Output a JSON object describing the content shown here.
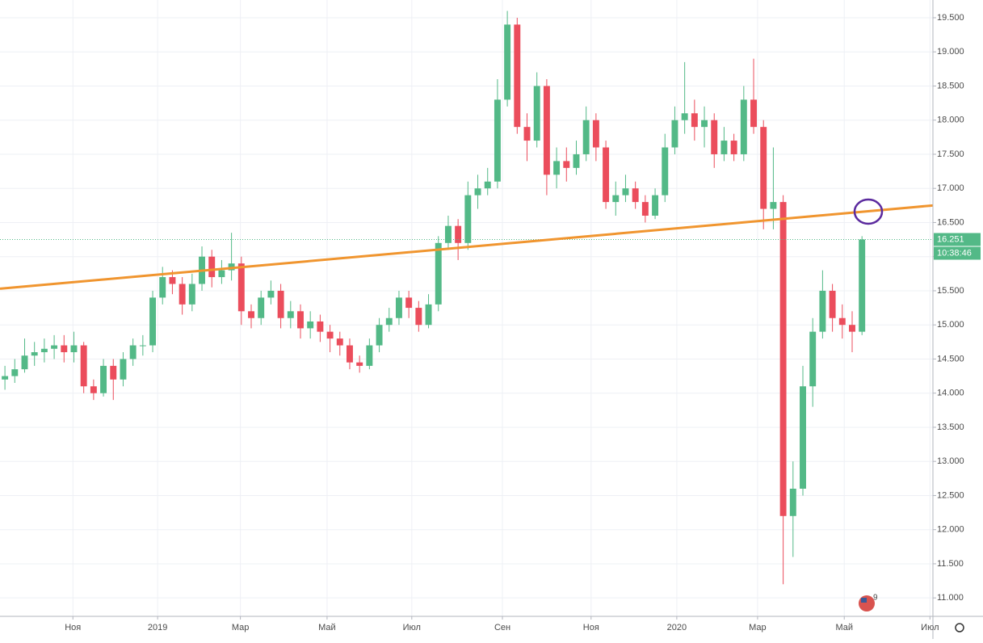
{
  "chart_data": {
    "type": "candlestick",
    "series": [
      {
        "up_color": "#53b987",
        "down_color": "#eb4d5c",
        "open": [
          14.2,
          14.25,
          14.35,
          14.55,
          14.6,
          14.65,
          14.7,
          14.6,
          14.7,
          14.1,
          14.0,
          14.4,
          14.2,
          14.5,
          14.7,
          14.7,
          15.4,
          15.7,
          15.6,
          15.3,
          15.6,
          16.0,
          15.7,
          15.8,
          15.9,
          15.2,
          15.1,
          15.4,
          15.5,
          15.1,
          15.2,
          14.95,
          15.05,
          14.9,
          14.8,
          14.7,
          14.45,
          14.4,
          14.7,
          15.0,
          15.1,
          15.4,
          15.25,
          15.0,
          15.3,
          16.2,
          16.45,
          16.2,
          16.9,
          17.0,
          17.1,
          18.3,
          19.4,
          17.9,
          17.7,
          18.5,
          17.2,
          17.4,
          17.3,
          17.5,
          18.0,
          17.6,
          16.8,
          16.9,
          17.0,
          16.8,
          16.6,
          16.9,
          17.6,
          18.0,
          18.1,
          17.9,
          18.0,
          17.5,
          17.7,
          17.5,
          18.3,
          17.9,
          16.7,
          16.8,
          12.2,
          12.6,
          14.1,
          14.9,
          15.5,
          15.1,
          15.0,
          14.9
        ],
        "high": [
          14.4,
          14.5,
          14.8,
          14.75,
          14.8,
          14.85,
          14.85,
          14.9,
          14.75,
          14.2,
          14.5,
          14.5,
          14.6,
          14.8,
          14.85,
          15.5,
          15.85,
          15.8,
          15.7,
          15.75,
          16.15,
          16.1,
          15.95,
          16.35,
          16.0,
          15.3,
          15.5,
          15.65,
          15.6,
          15.35,
          15.3,
          15.2,
          15.15,
          15.0,
          14.9,
          14.8,
          14.55,
          14.8,
          15.1,
          15.25,
          15.5,
          15.5,
          15.35,
          15.45,
          16.3,
          16.6,
          16.55,
          17.1,
          17.2,
          17.3,
          18.6,
          19.6,
          19.5,
          18.1,
          18.7,
          18.6,
          17.6,
          17.6,
          17.7,
          18.2,
          18.1,
          17.7,
          17.1,
          17.2,
          17.1,
          16.9,
          17.0,
          17.8,
          18.2,
          18.85,
          18.3,
          18.2,
          18.1,
          17.9,
          17.8,
          18.5,
          18.9,
          18.0,
          17.6,
          16.9,
          13.0,
          14.4,
          15.1,
          15.8,
          15.6,
          15.3,
          15.2,
          16.3
        ],
        "low": [
          14.05,
          14.15,
          14.3,
          14.4,
          14.45,
          14.5,
          14.45,
          14.45,
          14.0,
          13.9,
          13.95,
          13.9,
          14.1,
          14.4,
          14.55,
          14.6,
          15.3,
          15.45,
          15.15,
          15.2,
          15.5,
          15.55,
          15.6,
          15.65,
          15.0,
          14.95,
          15.0,
          15.3,
          14.95,
          14.95,
          14.8,
          14.8,
          14.75,
          14.6,
          14.55,
          14.35,
          14.3,
          14.35,
          14.6,
          14.9,
          15.0,
          15.1,
          14.9,
          14.95,
          15.2,
          16.1,
          15.95,
          16.1,
          16.7,
          16.9,
          17.0,
          18.2,
          17.8,
          17.4,
          17.6,
          16.9,
          17.0,
          17.1,
          17.2,
          17.4,
          17.4,
          16.7,
          16.6,
          16.8,
          16.7,
          16.5,
          16.55,
          16.8,
          17.5,
          17.8,
          17.7,
          17.6,
          17.3,
          17.4,
          17.4,
          17.4,
          17.8,
          16.4,
          16.4,
          11.2,
          11.6,
          12.5,
          13.8,
          14.8,
          14.9,
          14.8,
          14.6,
          14.85
        ],
        "close": [
          14.25,
          14.35,
          14.55,
          14.6,
          14.65,
          14.7,
          14.6,
          14.7,
          14.1,
          14.0,
          14.4,
          14.2,
          14.5,
          14.7,
          14.7,
          15.4,
          15.7,
          15.6,
          15.3,
          15.6,
          16.0,
          15.7,
          15.8,
          15.9,
          15.2,
          15.1,
          15.4,
          15.5,
          15.1,
          15.2,
          14.95,
          15.05,
          14.9,
          14.8,
          14.7,
          14.45,
          14.4,
          14.7,
          15.0,
          15.1,
          15.4,
          15.25,
          15.0,
          15.3,
          16.2,
          16.45,
          16.2,
          16.9,
          17.0,
          17.1,
          18.3,
          19.4,
          17.9,
          17.7,
          18.5,
          17.2,
          17.4,
          17.3,
          17.5,
          18.0,
          17.6,
          16.8,
          16.9,
          17.0,
          16.8,
          16.6,
          16.9,
          17.6,
          18.0,
          18.1,
          17.9,
          18.0,
          17.5,
          17.7,
          17.5,
          18.3,
          17.9,
          16.7,
          16.8,
          12.2,
          12.6,
          14.1,
          14.9,
          15.5,
          15.1,
          15.0,
          14.9,
          16.251
        ]
      }
    ],
    "trendline": {
      "x": [
        -0.5,
        94.2
      ],
      "y": [
        15.53,
        16.75
      ],
      "color": "#f0952f"
    },
    "countdown": "10:38:46",
    "badge": "9",
    "xlim": [
      -0.5,
      94.2
    ],
    "xticks": [
      {
        "value": 6.9,
        "label": "Ноя"
      },
      {
        "value": 15.5,
        "label": "2019"
      },
      {
        "value": 23.9,
        "label": "Мар"
      },
      {
        "value": 32.7,
        "label": "Май"
      },
      {
        "value": 41.3,
        "label": "Июл"
      },
      {
        "value": 50.5,
        "label": "Сен"
      },
      {
        "value": 59.5,
        "label": "Ноя"
      },
      {
        "value": 68.2,
        "label": "2020"
      },
      {
        "value": 76.4,
        "label": "Мар"
      },
      {
        "value": 85.2,
        "label": "Май"
      },
      {
        "value": 93.9,
        "label": "Июл"
      }
    ],
    "ylim": [
      10.73,
      19.76
    ],
    "yticks": [
      {
        "value": 11,
        "label": "11.000"
      },
      {
        "value": 11.5,
        "label": "11.500"
      },
      {
        "value": 12,
        "label": "12.000"
      },
      {
        "value": 12.5,
        "label": "12.500"
      },
      {
        "value": 13,
        "label": "13.000"
      },
      {
        "value": 13.5,
        "label": "13.500"
      },
      {
        "value": 14,
        "label": "14.000"
      },
      {
        "value": 14.5,
        "label": "14.500"
      },
      {
        "value": 15,
        "label": "15.000"
      },
      {
        "value": 15.5,
        "label": "15.500"
      },
      {
        "value": 16,
        "label": "16.000"
      },
      {
        "value": 16.5,
        "label": "16.500"
      },
      {
        "value": 17,
        "label": "17.000"
      },
      {
        "value": 17.5,
        "label": "17.500"
      },
      {
        "value": 18,
        "label": "18.000"
      },
      {
        "value": 18.5,
        "label": "18.500"
      },
      {
        "value": 19,
        "label": "19.000"
      },
      {
        "value": 19.5,
        "label": "19.500"
      }
    ],
    "grid": true
  }
}
